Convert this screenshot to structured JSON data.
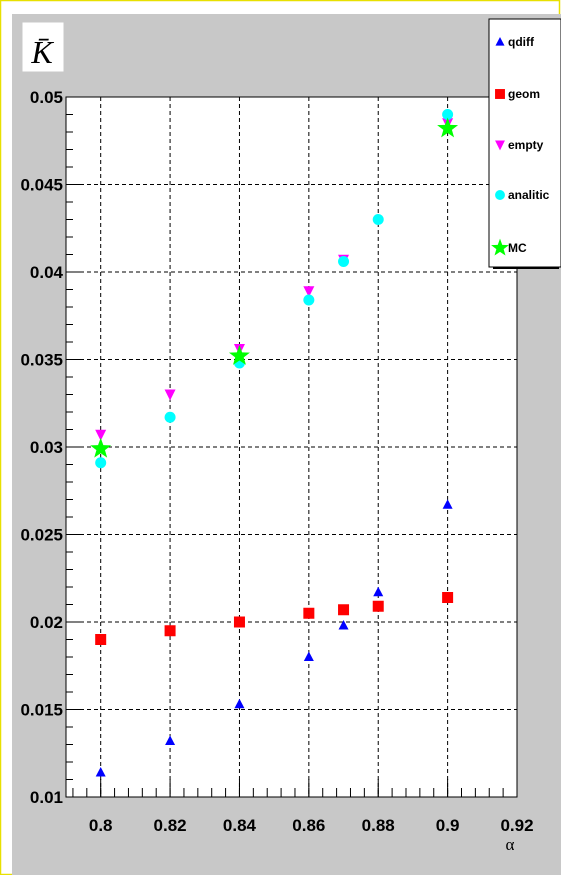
{
  "chart_data": {
    "type": "scatter",
    "title": "K̄",
    "xlabel": "α",
    "ylabel": "",
    "xlim": [
      0.79,
      0.92
    ],
    "ylim": [
      0.01,
      0.05
    ],
    "grid": true,
    "legend_position": "top-right",
    "x_ticks": [
      "0.8",
      "0.82",
      "0.84",
      "0.86",
      "0.88",
      "0.9",
      "0.92"
    ],
    "y_ticks": [
      "0.01",
      "0.015",
      "0.02",
      "0.025",
      "0.03",
      "0.035",
      "0.04",
      "0.045",
      "0.05"
    ],
    "series": [
      {
        "name": "qdiff",
        "marker": "triangle-up",
        "color": "#0000ff",
        "x": [
          0.8,
          0.82,
          0.84,
          0.86,
          0.87,
          0.88,
          0.9
        ],
        "y": [
          0.0114,
          0.0132,
          0.0153,
          0.018,
          0.0198,
          0.0217,
          0.0267
        ]
      },
      {
        "name": "geom",
        "marker": "square",
        "color": "#ff0000",
        "x": [
          0.8,
          0.82,
          0.84,
          0.86,
          0.87,
          0.88,
          0.9
        ],
        "y": [
          0.019,
          0.0195,
          0.02,
          0.0205,
          0.0207,
          0.0209,
          0.0214
        ]
      },
      {
        "name": "empty",
        "marker": "triangle-down",
        "color": "#ff00ff",
        "x": [
          0.8,
          0.82,
          0.84,
          0.86,
          0.87,
          0.9
        ],
        "y": [
          0.0307,
          0.033,
          0.0356,
          0.0389,
          0.0407,
          0.0485
        ]
      },
      {
        "name": "analitic",
        "marker": "circle",
        "color": "#00ffff",
        "x": [
          0.8,
          0.82,
          0.84,
          0.86,
          0.87,
          0.88,
          0.9
        ],
        "y": [
          0.0291,
          0.0317,
          0.0348,
          0.0384,
          0.0406,
          0.043,
          0.049
        ]
      },
      {
        "name": "MC",
        "marker": "star",
        "color": "#00ff00",
        "x": [
          0.8,
          0.84,
          0.9
        ],
        "y": [
          0.0299,
          0.0352,
          0.0482
        ]
      }
    ]
  }
}
